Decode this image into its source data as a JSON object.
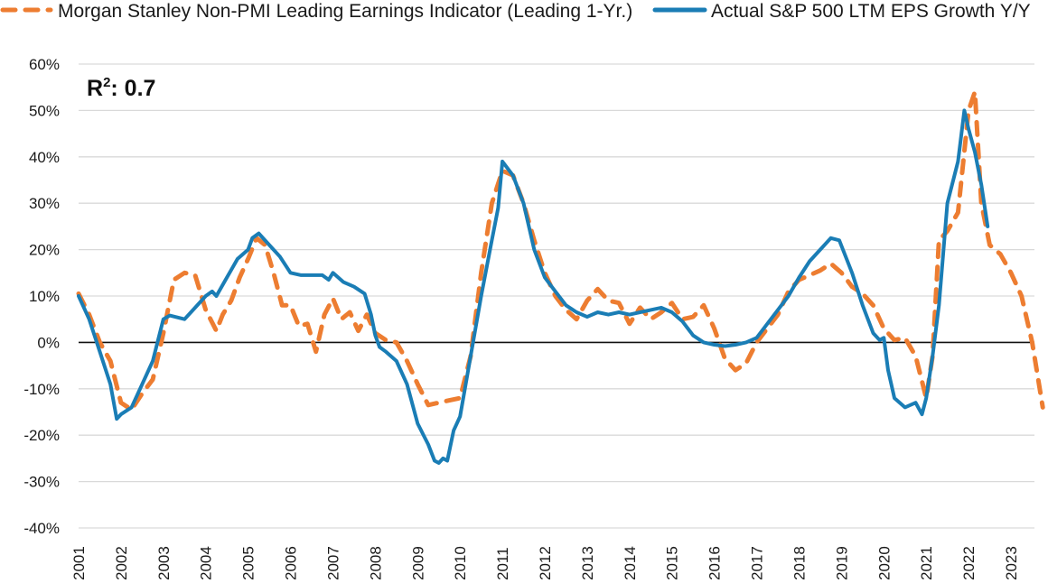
{
  "chart_data": {
    "type": "line",
    "title": "",
    "xlabel": "",
    "ylabel": "",
    "ylim": [
      -40,
      60
    ],
    "xlim": [
      2001,
      2023.8
    ],
    "y_ticks": [
      "60%",
      "50%",
      "40%",
      "30%",
      "20%",
      "10%",
      "0%",
      "-10%",
      "-20%",
      "-30%",
      "-40%"
    ],
    "y_tick_values": [
      60,
      50,
      40,
      30,
      20,
      10,
      0,
      -10,
      -20,
      -30,
      -40
    ],
    "x_ticks": [
      "2001",
      "2002",
      "2003",
      "2004",
      "2005",
      "2006",
      "2007",
      "2008",
      "2009",
      "2010",
      "2011",
      "2012",
      "2013",
      "2014",
      "2015",
      "2016",
      "2017",
      "2018",
      "2019",
      "2020",
      "2021",
      "2022",
      "2023"
    ],
    "x_tick_values": [
      2001,
      2002,
      2003,
      2004,
      2005,
      2006,
      2007,
      2008,
      2009,
      2010,
      2011,
      2012,
      2013,
      2014,
      2015,
      2016,
      2017,
      2018,
      2019,
      2020,
      2021,
      2022,
      2023
    ],
    "grid": "horizontal",
    "legend_position": "top",
    "annotation": {
      "text": "R",
      "superscript": "2",
      "suffix": ": 0.7"
    },
    "series": [
      {
        "name": "Morgan Stanley Non-PMI Leading Earnings Indicator (Leading 1-Yr.)",
        "color": "#ED7D31",
        "style": "dashed",
        "x": [
          2001.0,
          2001.25,
          2001.5,
          2001.75,
          2002.0,
          2002.25,
          2002.5,
          2002.75,
          2003.0,
          2003.25,
          2003.5,
          2003.75,
          2004.0,
          2004.25,
          2004.4,
          2004.6,
          2004.8,
          2005.0,
          2005.2,
          2005.4,
          2005.6,
          2005.8,
          2006.0,
          2006.2,
          2006.4,
          2006.6,
          2006.8,
          2007.0,
          2007.2,
          2007.4,
          2007.6,
          2007.8,
          2008.0,
          2008.25,
          2008.5,
          2008.75,
          2009.0,
          2009.25,
          2009.5,
          2009.75,
          2010.0,
          2010.25,
          2010.5,
          2010.75,
          2011.0,
          2011.25,
          2011.5,
          2011.75,
          2012.0,
          2012.25,
          2012.5,
          2012.75,
          2013.0,
          2013.25,
          2013.5,
          2013.75,
          2014.0,
          2014.25,
          2014.5,
          2014.75,
          2015.0,
          2015.25,
          2015.5,
          2015.75,
          2016.0,
          2016.25,
          2016.5,
          2016.75,
          2017.0,
          2017.25,
          2017.5,
          2017.75,
          2018.0,
          2018.25,
          2018.5,
          2018.75,
          2019.0,
          2019.25,
          2019.5,
          2019.75,
          2020.0,
          2020.25,
          2020.5,
          2020.75,
          2021.0,
          2021.15,
          2021.3,
          2021.5,
          2021.75,
          2022.0,
          2022.15,
          2022.3,
          2022.5,
          2022.75,
          2023.0,
          2023.25,
          2023.5,
          2023.75
        ],
        "values": [
          10.5,
          6,
          0,
          -4,
          -13,
          -14.5,
          -11,
          -8,
          2,
          13.5,
          15,
          14.5,
          7,
          2.5,
          6,
          9,
          14,
          18,
          22.5,
          21,
          15,
          8,
          8,
          3.5,
          4,
          -2,
          6,
          9.5,
          5,
          6.5,
          2.5,
          6,
          2,
          0.5,
          0,
          -4,
          -9,
          -13.5,
          -13,
          -12.5,
          -12,
          -3,
          15,
          30,
          37,
          36,
          30,
          22,
          15,
          10,
          7,
          5,
          9,
          11.5,
          9,
          8.5,
          4,
          7.5,
          5,
          6.5,
          8.5,
          5,
          5.5,
          8,
          3,
          -3.5,
          -6,
          -4.5,
          0,
          3,
          6,
          11,
          13.5,
          14.5,
          15.5,
          17,
          15,
          12,
          10.5,
          8,
          3,
          0.5,
          1,
          -3,
          -12,
          -3,
          22,
          24,
          28,
          50,
          54,
          30,
          21,
          19,
          15,
          10,
          0,
          -14
        ]
      },
      {
        "name": "Actual S&P 500 LTM EPS Growth Y/Y",
        "color": "#1A7DB5",
        "style": "solid",
        "x": [
          2001.0,
          2001.25,
          2001.5,
          2001.75,
          2001.9,
          2002.0,
          2002.25,
          2002.5,
          2002.75,
          2003.0,
          2003.15,
          2003.5,
          2003.75,
          2004.0,
          2004.15,
          2004.25,
          2004.5,
          2004.75,
          2005.0,
          2005.1,
          2005.25,
          2005.5,
          2005.75,
          2006.0,
          2006.25,
          2006.5,
          2006.75,
          2006.9,
          2007.0,
          2007.25,
          2007.5,
          2007.75,
          2007.9,
          2008.0,
          2008.1,
          2008.25,
          2008.5,
          2008.75,
          2009.0,
          2009.25,
          2009.4,
          2009.5,
          2009.6,
          2009.7,
          2009.85,
          2010.0,
          2010.25,
          2010.5,
          2010.75,
          2010.9,
          2011.0,
          2011.25,
          2011.5,
          2011.75,
          2012.0,
          2012.25,
          2012.5,
          2012.75,
          2013.0,
          2013.25,
          2013.5,
          2013.75,
          2014.0,
          2014.25,
          2014.5,
          2014.75,
          2015.0,
          2015.25,
          2015.5,
          2015.75,
          2016.0,
          2016.25,
          2016.5,
          2016.75,
          2017.0,
          2017.25,
          2017.5,
          2017.75,
          2018.0,
          2018.25,
          2018.5,
          2018.75,
          2018.95,
          2019.25,
          2019.5,
          2019.75,
          2019.9,
          2020.0,
          2020.1,
          2020.25,
          2020.5,
          2020.75,
          2020.9,
          2021.0,
          2021.15,
          2021.3,
          2021.5,
          2021.75,
          2021.9,
          2022.0,
          2022.15,
          2022.3,
          2022.45
        ],
        "values": [
          10,
          5,
          -2,
          -9,
          -16.5,
          -15.5,
          -14,
          -9,
          -4,
          5,
          5.8,
          5,
          7.5,
          10,
          11,
          10,
          14,
          18,
          20,
          22.5,
          23.5,
          21,
          18.5,
          15,
          14.5,
          14.5,
          14.5,
          13.5,
          15,
          13,
          12,
          10.5,
          6,
          1.5,
          -1,
          -2,
          -4,
          -9,
          -17.5,
          -22,
          -25.5,
          -26,
          -25,
          -25.5,
          -19,
          -16,
          -3,
          10,
          22,
          29,
          39,
          36,
          30,
          20,
          14,
          11,
          8,
          6.5,
          5.5,
          6.5,
          6,
          6.5,
          6,
          6.5,
          7,
          7.5,
          6.5,
          4.5,
          1.5,
          0,
          -0.5,
          -0.8,
          -0.5,
          0,
          1,
          4,
          7,
          10,
          14,
          17.5,
          20,
          22.5,
          22,
          15,
          8,
          2,
          0.5,
          1,
          -6,
          -12,
          -14,
          -13,
          -15.5,
          -12,
          -3,
          8,
          30,
          39,
          50,
          46,
          41,
          34,
          25
        ]
      }
    ]
  },
  "legend": {
    "items": [
      {
        "label": "Morgan Stanley Non-PMI Leading Earnings Indicator (Leading 1-Yr.)",
        "color": "#ED7D31",
        "style": "dashed"
      },
      {
        "label": "Actual S&P 500 LTM EPS Growth Y/Y",
        "color": "#1A7DB5",
        "style": "solid"
      }
    ]
  }
}
